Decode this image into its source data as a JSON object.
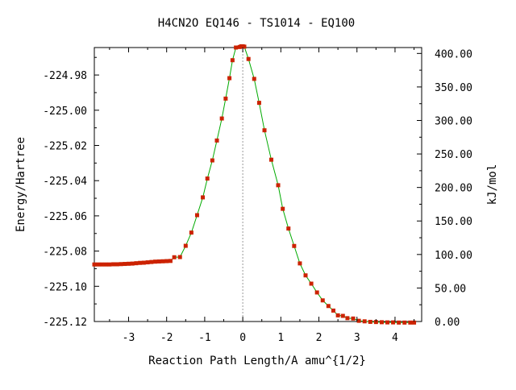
{
  "chart_data": {
    "type": "line",
    "title": "H4CN2O   EQ146 - TS1014 - EQ100",
    "xlabel": "Reaction Path Length/A amu^{1/2}",
    "ylabel_left": "Energy/Hartree",
    "ylabel_right": "kJ/mol",
    "xlim": [
      -3.9,
      4.7
    ],
    "ylim": [
      -225.12,
      -224.9644
    ],
    "ylim_right": [
      0,
      408.8
    ],
    "x_ticks": [
      -3,
      -2,
      -1,
      0,
      1,
      2,
      3,
      4
    ],
    "x_tick_labels": [
      "-3",
      "-2",
      "-1",
      "0",
      "1",
      "2",
      "3",
      "4"
    ],
    "y_ticks": [
      -224.98,
      -225.0,
      -225.02,
      -225.04,
      -225.06,
      -225.08,
      -225.1,
      -225.12
    ],
    "y_tick_labels": [
      "-224.98",
      "-225.00",
      "-225.02",
      "-225.04",
      "-225.06",
      "-225.08",
      "-225.10",
      "-225.12"
    ],
    "y_right_ticks": [
      0,
      50,
      100,
      150,
      200,
      250,
      300,
      350,
      400
    ],
    "y_right_tick_labels": [
      "0.00",
      "50.00",
      "100.00",
      "150.00",
      "200.00",
      "250.00",
      "300.00",
      "350.00",
      "400.00"
    ],
    "ts_marker_x": 0,
    "grid": false,
    "line_color": "#00aa00",
    "marker_color": "#cc2200",
    "series": [
      {
        "x": [
          -3.9,
          -3.8,
          -3.7,
          -3.6,
          -3.5,
          -3.4,
          -3.3,
          -3.2,
          -3.1,
          -3.0,
          -2.9,
          -2.8,
          -2.7,
          -2.6,
          -2.5,
          -2.4,
          -2.3,
          -2.2,
          -2.1,
          -2.0,
          -1.9,
          -1.8,
          -1.65,
          -1.5,
          -1.35,
          -1.2,
          -1.05,
          -0.93,
          -0.8,
          -0.68,
          -0.55,
          -0.45,
          -0.35,
          -0.27,
          -0.18,
          -0.08,
          -0.04,
          0.0,
          0.04,
          0.15,
          0.3,
          0.43,
          0.57,
          0.75,
          0.93,
          1.05,
          1.2,
          1.35,
          1.5,
          1.65,
          1.8,
          1.95,
          2.1,
          2.25,
          2.38,
          2.5,
          2.63,
          2.75,
          2.9,
          3.05,
          3.2,
          3.35,
          3.5,
          3.65,
          3.8,
          3.95,
          4.1,
          4.25,
          4.4,
          4.5
        ],
        "y": [
          -225.0876,
          -225.0876,
          -225.0876,
          -225.0876,
          -225.0876,
          -225.0875,
          -225.0875,
          -225.0874,
          -225.0873,
          -225.0872,
          -225.0871,
          -225.0869,
          -225.0867,
          -225.0866,
          -225.0864,
          -225.0862,
          -225.086,
          -225.0859,
          -225.0858,
          -225.0857,
          -225.0856,
          -225.0835,
          -225.0834,
          -225.077,
          -225.0695,
          -225.0596,
          -225.0495,
          -225.0388,
          -225.0285,
          -225.0172,
          -225.0047,
          -224.9934,
          -224.9818,
          -224.9716,
          -224.9644,
          -224.9641,
          -224.9637,
          -224.9637,
          -224.9639,
          -224.9709,
          -224.9822,
          -224.9958,
          -225.0114,
          -225.0281,
          -225.0426,
          -225.056,
          -225.0672,
          -225.0771,
          -225.087,
          -225.0938,
          -225.0985,
          -225.1035,
          -225.108,
          -225.1112,
          -225.1138,
          -225.1165,
          -225.1168,
          -225.1181,
          -225.1183,
          -225.1196,
          -225.1199,
          -225.1202,
          -225.1203,
          -225.1204,
          -225.1205,
          -225.1205,
          -225.1206,
          -225.1206,
          -225.1206,
          -225.1206
        ]
      }
    ]
  }
}
